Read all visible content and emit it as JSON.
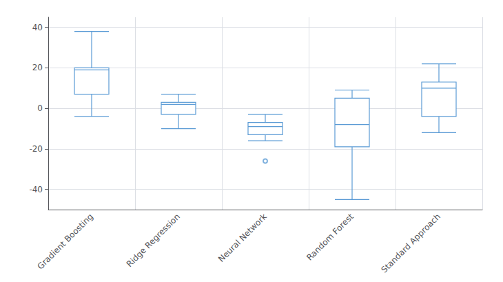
{
  "chart_data": {
    "type": "boxplot",
    "categories": [
      "Gradient Boosting",
      "Ridge Regression",
      "Neural Network",
      "Random Forest",
      "Standard Approach"
    ],
    "boxes": [
      {
        "q1": 7,
        "median": 19,
        "q3": 20,
        "whisker_low": -4,
        "whisker_high": 38,
        "outliers": []
      },
      {
        "q1": -3,
        "median": 2,
        "q3": 3,
        "whisker_low": -10,
        "whisker_high": 7,
        "outliers": []
      },
      {
        "q1": -13,
        "median": -9,
        "q3": -7,
        "whisker_low": -16,
        "whisker_high": -3,
        "outliers": [
          -26
        ]
      },
      {
        "q1": -19,
        "median": -8,
        "q3": 5,
        "whisker_low": -45,
        "whisker_high": 9,
        "outliers": []
      },
      {
        "q1": -4,
        "median": 10,
        "q3": 13,
        "whisker_low": -12,
        "whisker_high": 22,
        "outliers": []
      }
    ],
    "color": "#5B9BD5",
    "ylim": [
      -50,
      45
    ],
    "yticks": [
      -40,
      -20,
      0,
      20,
      40
    ],
    "grid": true
  }
}
